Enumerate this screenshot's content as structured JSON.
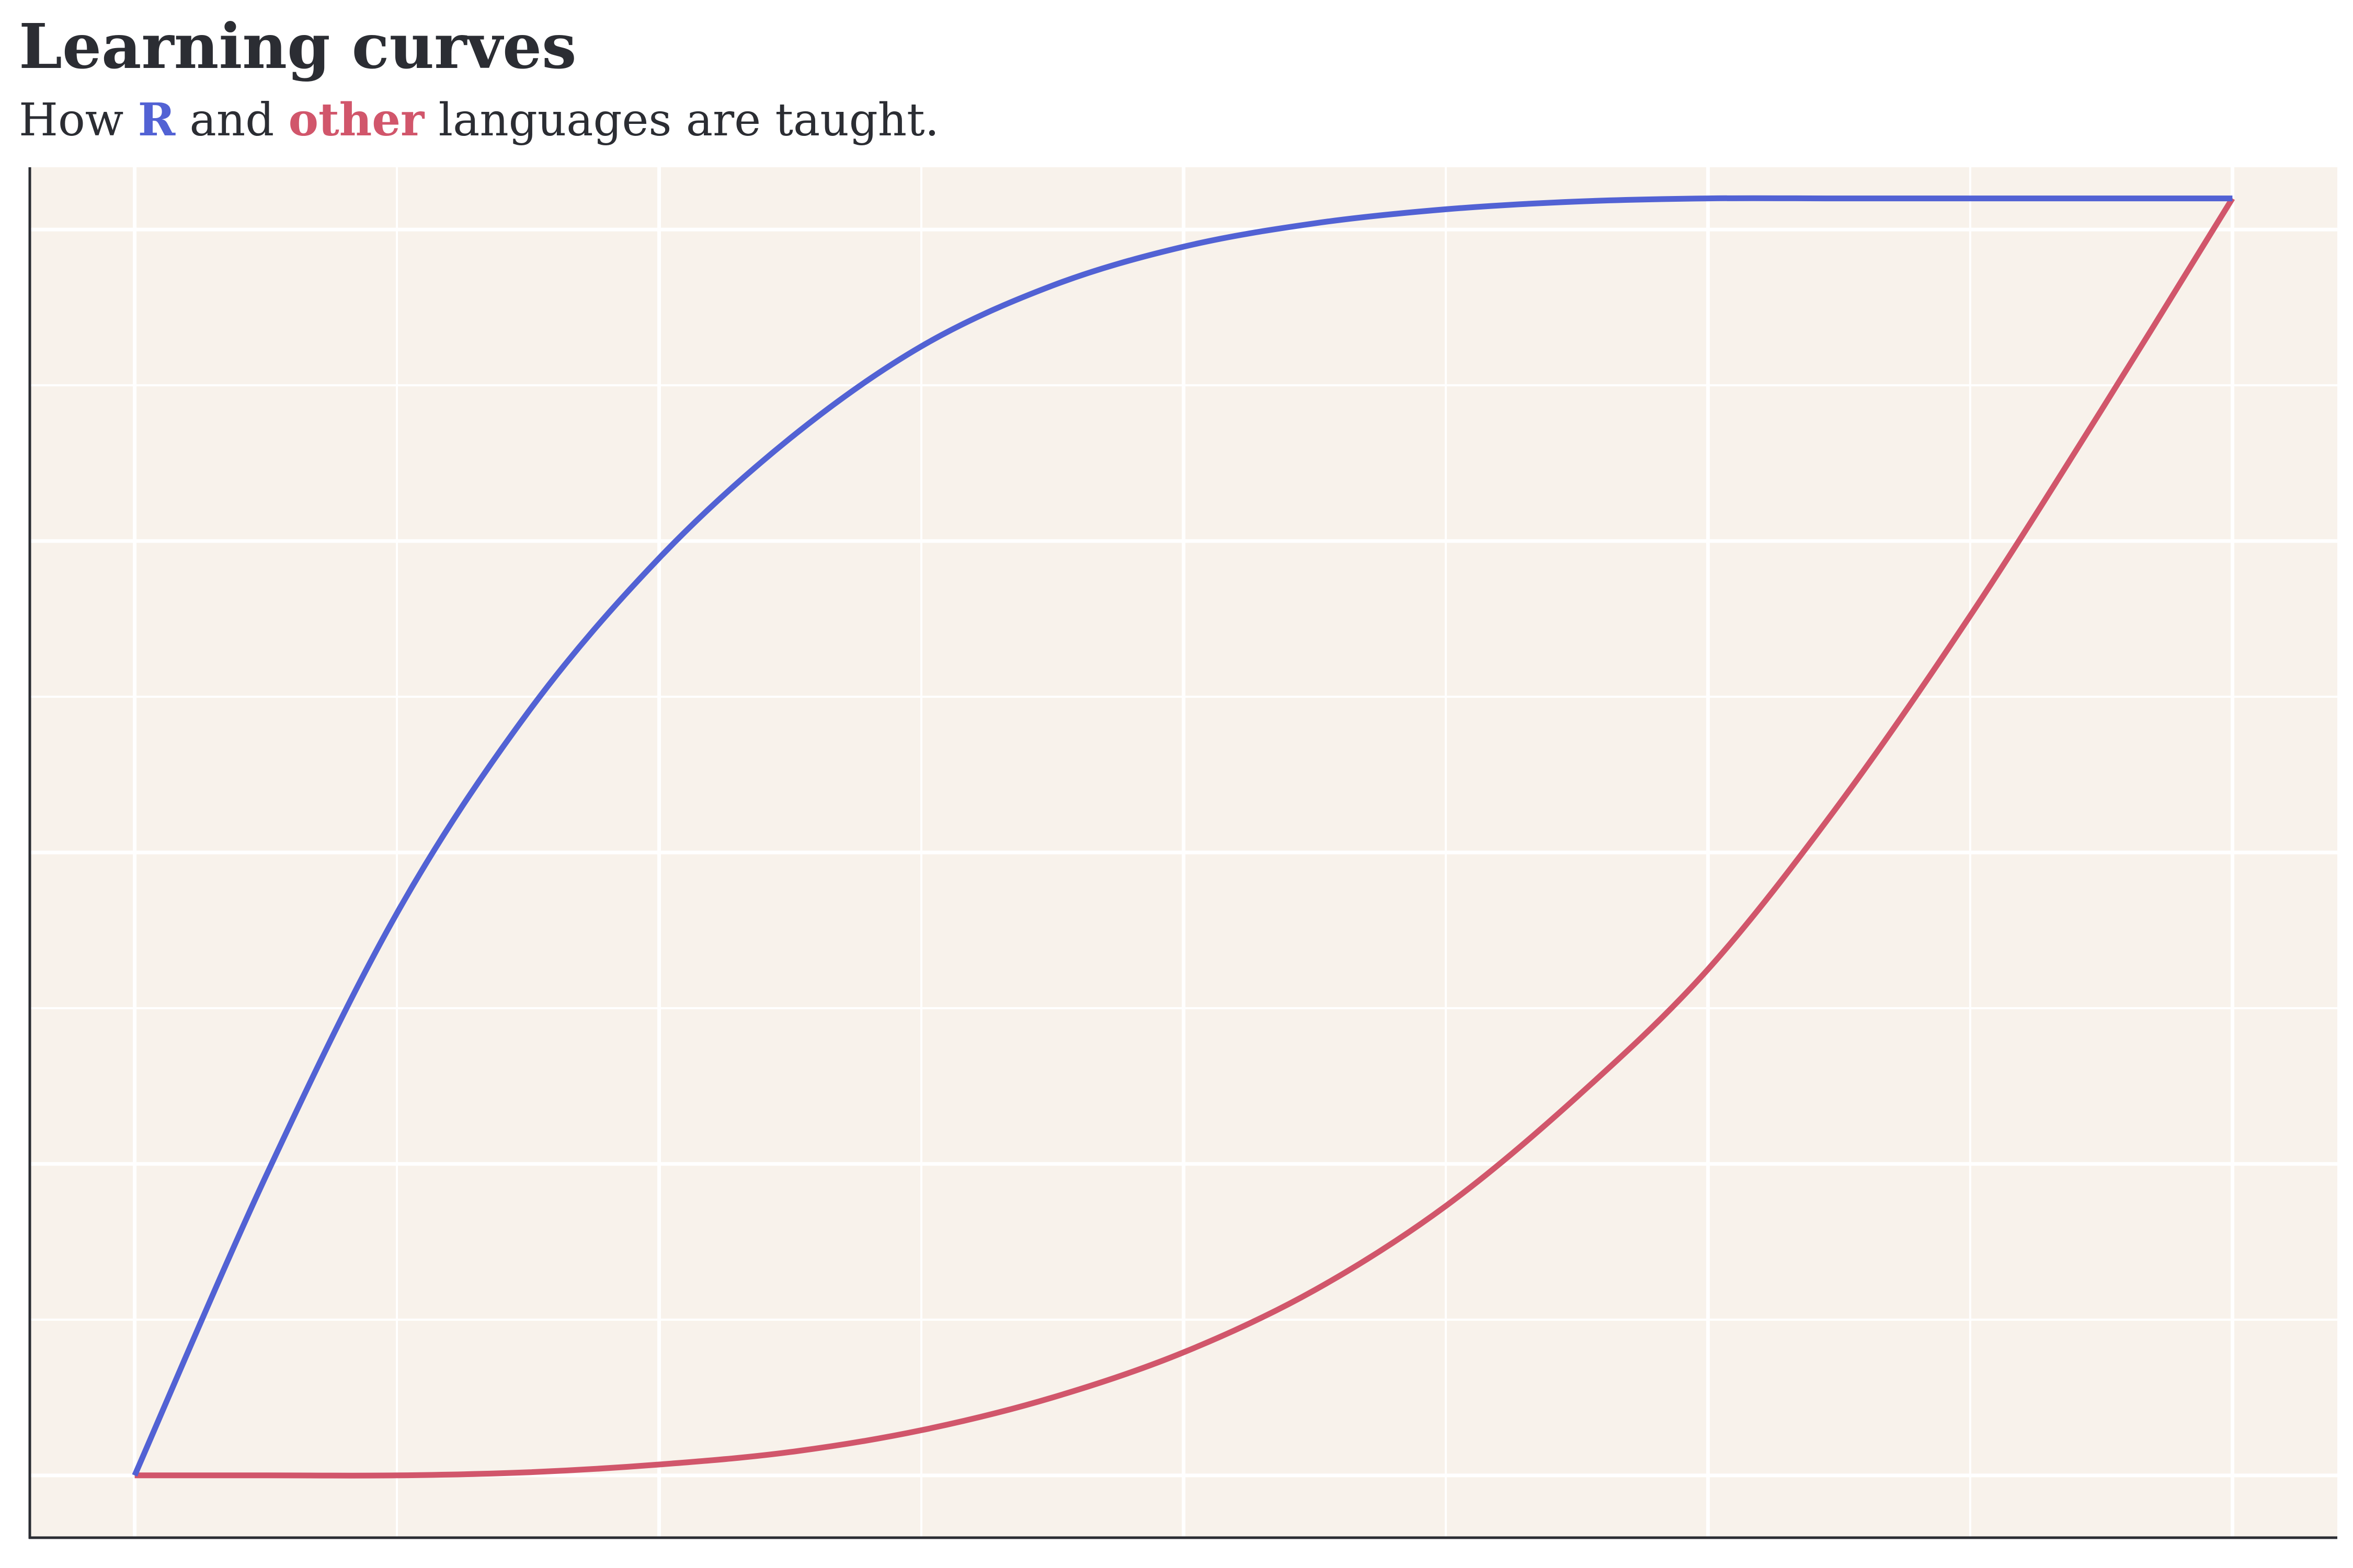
{
  "colors": {
    "background": "#ffffff",
    "panel": "#f8f2eb",
    "grid": "#ffffff",
    "axis": "#2b2d33",
    "text": "#2b2d33",
    "r_series": "#5262d4",
    "other_series": "#d1566b"
  },
  "header": {
    "title": "Learning curves",
    "subtitle_prefix": "How ",
    "subtitle_r": "R",
    "subtitle_middle": " and ",
    "subtitle_other": "other",
    "subtitle_suffix": " languages are taught."
  },
  "chart_data": {
    "type": "line",
    "title": "Learning curves",
    "subtitle": "How R and other languages are taught.",
    "xlabel": "",
    "ylabel": "",
    "xlim": [
      -0.4,
      8.4
    ],
    "ylim": [
      -0.4,
      8.4
    ],
    "x_ticks_shown": false,
    "y_ticks_shown": false,
    "grid": true,
    "legend": "none (series identified by colored words in subtitle)",
    "series": [
      {
        "name": "R",
        "color": "#5262d4",
        "x": [
          0,
          0.5,
          1,
          1.5,
          2,
          2.5,
          3,
          3.5,
          4,
          4.5,
          5,
          5.5,
          6,
          6.5,
          7,
          7.5,
          8
        ],
        "y": [
          0,
          1.92,
          3.61,
          4.9,
          5.89,
          6.66,
          7.25,
          7.64,
          7.89,
          8.04,
          8.13,
          8.18,
          8.2,
          8.2,
          8.2,
          8.2,
          8.2
        ]
      },
      {
        "name": "other",
        "color": "#d1566b",
        "x": [
          0,
          0.5,
          1,
          1.5,
          2,
          2.5,
          3,
          3.5,
          4,
          4.5,
          5,
          5.5,
          6,
          6.5,
          7,
          7.5,
          8
        ],
        "y": [
          0,
          0,
          0,
          0.02,
          0.07,
          0.15,
          0.29,
          0.5,
          0.79,
          1.19,
          1.73,
          2.43,
          3.25,
          4.31,
          5.52,
          6.84,
          8.2
        ]
      }
    ]
  }
}
